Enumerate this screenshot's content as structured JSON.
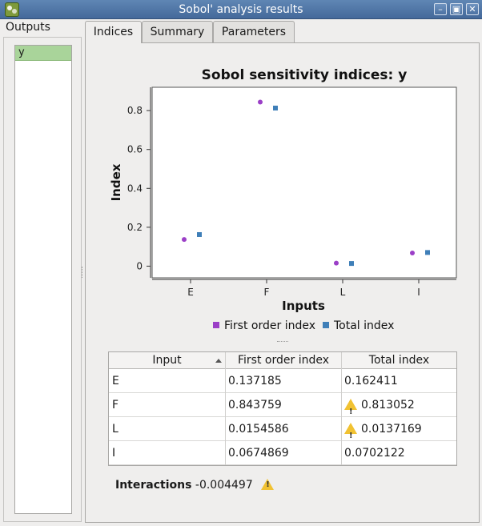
{
  "window": {
    "title": "Sobol' analysis results",
    "app_icon": "dice-icon"
  },
  "outputs": {
    "label": "Outputs",
    "items": [
      {
        "label": "y",
        "selected": true
      }
    ]
  },
  "tabs": [
    {
      "label": "Indices",
      "active": true
    },
    {
      "label": "Summary",
      "active": false
    },
    {
      "label": "Parameters",
      "active": false
    }
  ],
  "chart_data": {
    "type": "scatter",
    "title": "Sobol sensitivity indices: y",
    "xlabel": "Inputs",
    "ylabel": "Index",
    "categories": [
      "E",
      "F",
      "L",
      "I"
    ],
    "yticks": [
      "0",
      "0.2",
      "0.4",
      "0.6",
      "0.8"
    ],
    "ylim": [
      -0.06,
      0.92
    ],
    "grid": false,
    "legend_placement": "bottom",
    "series": [
      {
        "name": "First order index",
        "color": "#9b3fc7",
        "values": [
          0.137185,
          0.843759,
          0.0154586,
          0.0674869
        ]
      },
      {
        "name": "Total index",
        "color": "#3f7fb8",
        "values": [
          0.162411,
          0.813052,
          0.0137169,
          0.0702122
        ]
      }
    ]
  },
  "table": {
    "columns": [
      "Input",
      "First order index",
      "Total index"
    ],
    "sorted_column": "Input",
    "rows": [
      {
        "input": "E",
        "first": "0.137185",
        "total": "0.162411",
        "warn_total": false
      },
      {
        "input": "F",
        "first": "0.843759",
        "total": "0.813052",
        "warn_total": true
      },
      {
        "input": "L",
        "first": "0.0154586",
        "total": "0.0137169",
        "warn_total": true
      },
      {
        "input": "I",
        "first": "0.0674869",
        "total": "0.0702122",
        "warn_total": false
      }
    ]
  },
  "interactions": {
    "label": "Interactions",
    "value": "-0.004497",
    "warn": true
  }
}
